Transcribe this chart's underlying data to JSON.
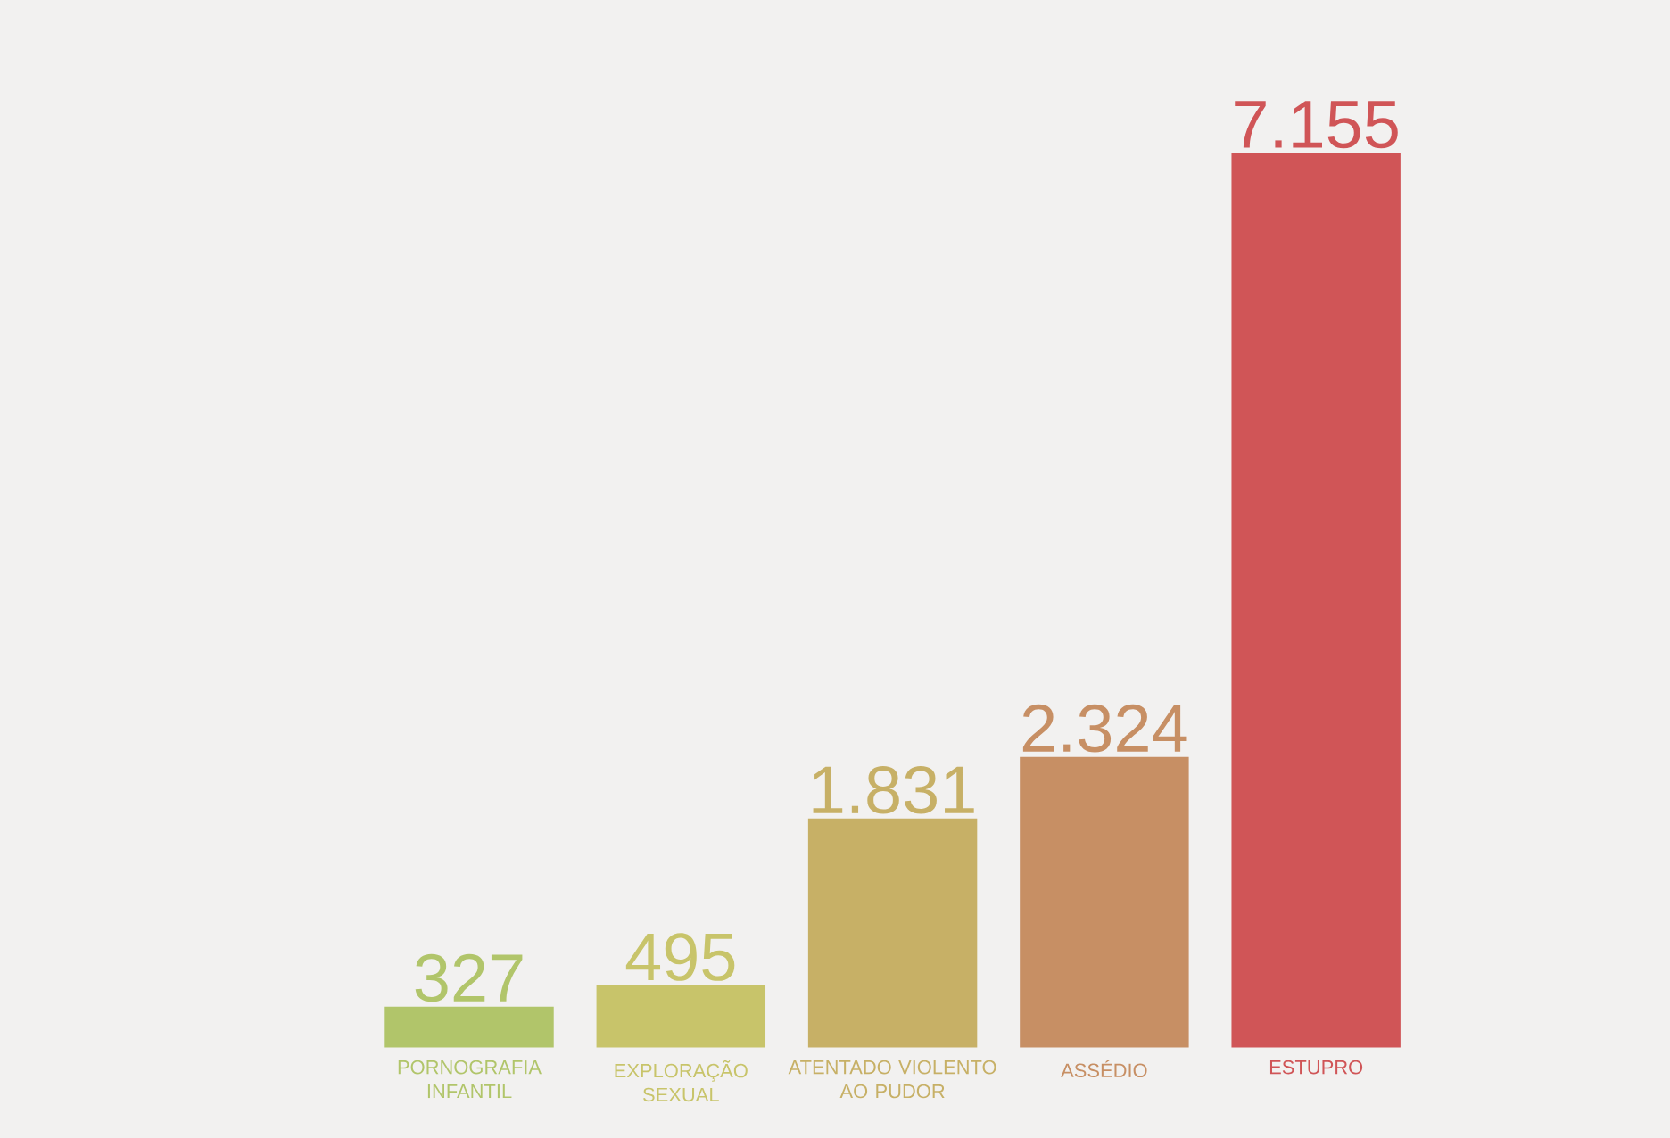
{
  "chart_data": {
    "type": "bar",
    "categories": [
      "PORNOGRAFIA INFANTIL",
      "EXPLORAÇÃO SEXUAL",
      "ATENTADO VIOLENTO AO PUDOR",
      "ASSÉDIO",
      "ESTUPRO"
    ],
    "values": [
      327,
      495,
      1831,
      2324,
      7155
    ],
    "value_labels": [
      "327",
      "495",
      "1.831",
      "2.324",
      "7.155"
    ],
    "colors": [
      "#b1c56a",
      "#c8c46a",
      "#c7b066",
      "#c78f64",
      "#d05557"
    ]
  }
}
